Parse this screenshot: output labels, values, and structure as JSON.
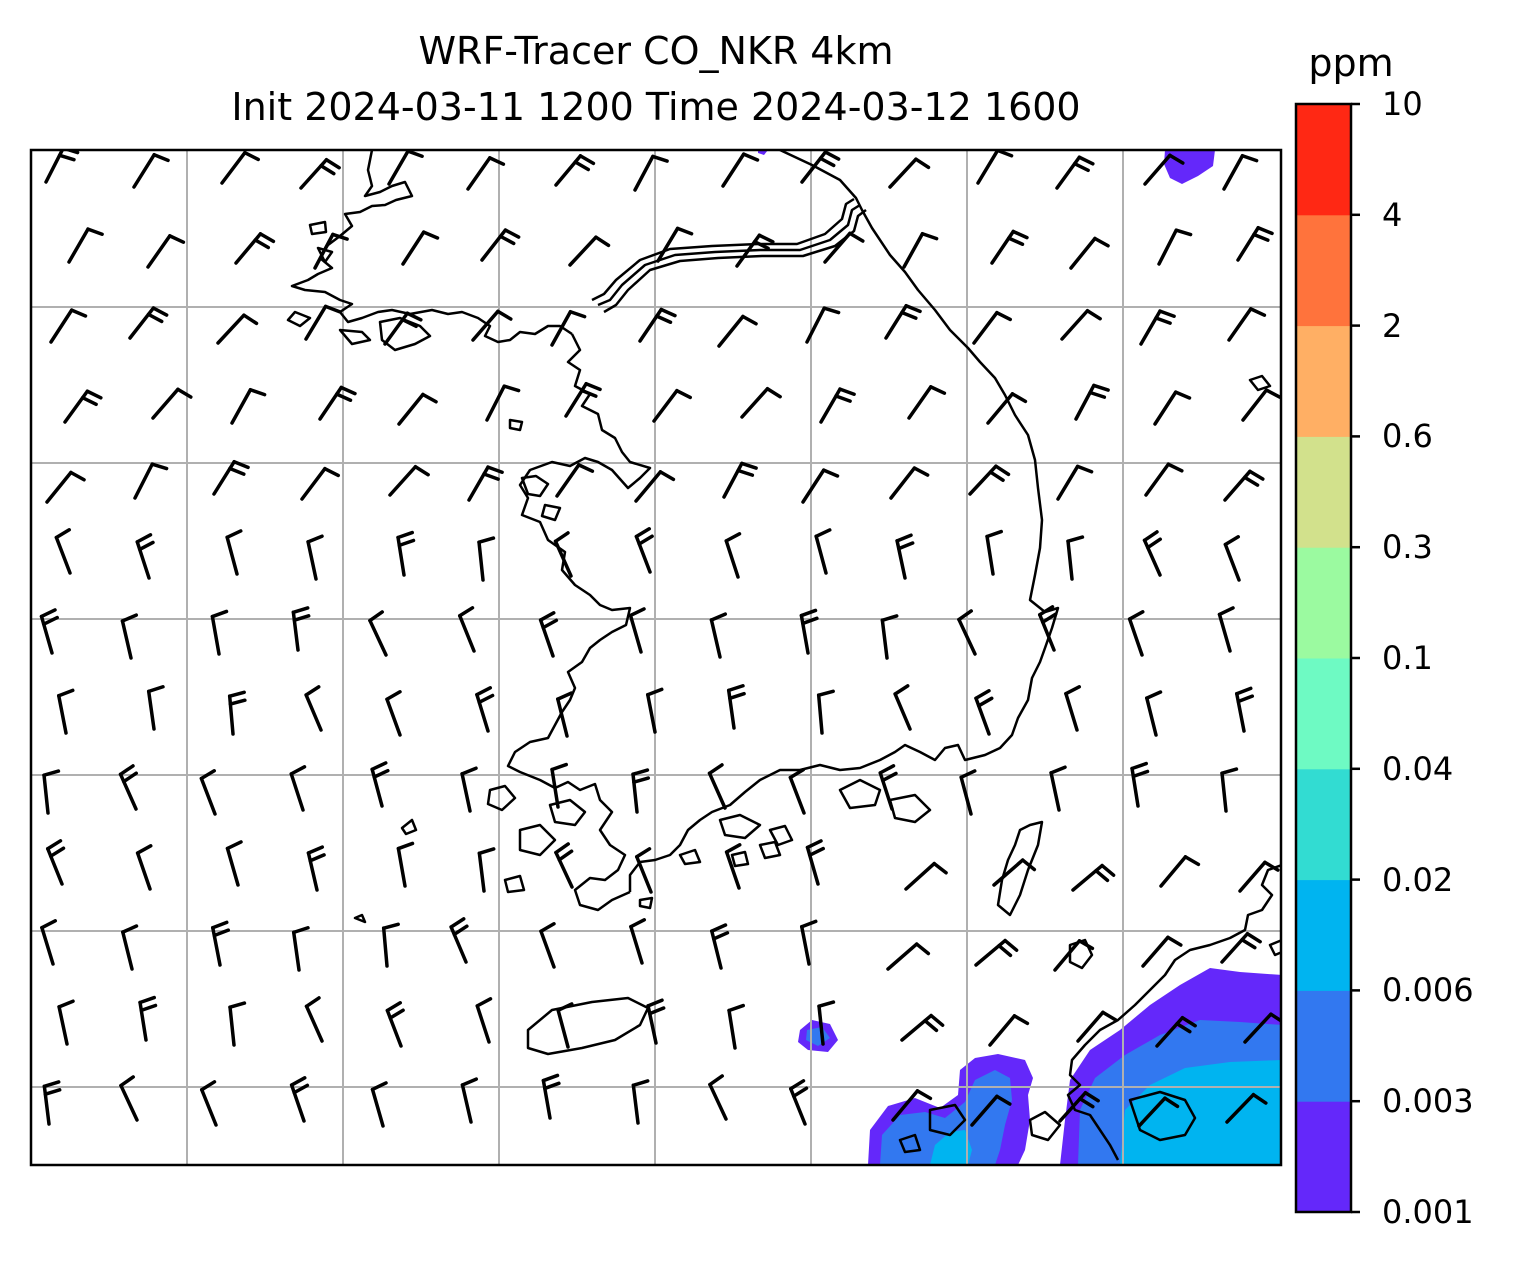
{
  "title": {
    "line1": "WRF-Tracer CO_NKR 4km",
    "line2": "Init 2024-03-11 1200 Time 2024-03-12 1600"
  },
  "colorbar": {
    "unit": "ppm",
    "levels": [
      "0.001",
      "0.003",
      "0.006",
      "0.02",
      "0.04",
      "0.1",
      "0.3",
      "0.6",
      "2",
      "4",
      "10"
    ],
    "colors": [
      "#6428fa",
      "#3278f0",
      "#00b4f0",
      "#32dcd2",
      "#6efac3",
      "#9bfaa0",
      "#d2e18c",
      "#ffaf64",
      "#ff733c",
      "#ff2814"
    ]
  },
  "map_layers": {
    "gridlines": true,
    "coastlines": true,
    "wind_barbs": true,
    "tracer_shading": true
  },
  "legend": {
    "wind_barbs": "wind-barb",
    "tracer": "CO_NKR"
  }
}
